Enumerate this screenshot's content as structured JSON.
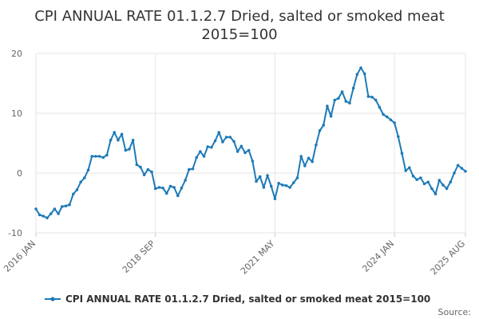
{
  "chart_data": {
    "type": "line",
    "title_lines": [
      "CPI ANNUAL RATE 01.1.2.7 Dried, salted or smoked meat",
      "2015=100"
    ],
    "xlabel": "",
    "ylabel": "",
    "ylim": [
      -10,
      20
    ],
    "yticks": [
      20,
      10,
      0,
      -10
    ],
    "xticks": [
      {
        "label": "2016 JAN",
        "index": 0
      },
      {
        "label": "2018 SEP",
        "index": 32
      },
      {
        "label": "2021 MAY",
        "index": 64
      },
      {
        "label": "2024 JAN",
        "index": 96
      },
      {
        "label": "2025 AUG",
        "index": 115
      }
    ],
    "grid": true,
    "legend_position": "bottom",
    "color": "#1d7ab8",
    "series": [
      {
        "name": "CPI ANNUAL RATE 01.1.2.7 Dried, salted or smoked meat 2015=100",
        "values": [
          -6.0,
          -7.0,
          -7.2,
          -7.5,
          -6.8,
          -6.0,
          -6.8,
          -5.6,
          -5.5,
          -5.3,
          -3.5,
          -2.8,
          -1.5,
          -0.8,
          0.5,
          2.8,
          2.8,
          2.8,
          2.6,
          3.0,
          5.5,
          6.8,
          5.5,
          6.5,
          3.8,
          4.0,
          5.5,
          1.4,
          1.0,
          -0.3,
          0.6,
          0.2,
          -2.6,
          -2.4,
          -2.5,
          -3.4,
          -2.2,
          -2.4,
          -3.8,
          -2.5,
          -1.2,
          0.6,
          0.7,
          2.6,
          3.6,
          2.8,
          4.4,
          4.3,
          5.4,
          6.8,
          5.2,
          6.0,
          6.0,
          5.3,
          3.6,
          4.5,
          3.4,
          3.8,
          2.0,
          -1.4,
          -0.6,
          -2.4,
          -0.4,
          -2.2,
          -4.3,
          -1.7,
          -2.0,
          -2.1,
          -2.4,
          -1.6,
          -0.8,
          2.8,
          1.2,
          2.5,
          1.9,
          4.7,
          7.1,
          8.0,
          11.2,
          9.5,
          12.2,
          12.5,
          13.6,
          12.0,
          11.7,
          14.2,
          16.5,
          17.6,
          16.6,
          12.8,
          12.7,
          12.2,
          11.0,
          9.8,
          9.4,
          8.9,
          8.4,
          6.1,
          3.3,
          0.4,
          0.9,
          -0.5,
          -1.1,
          -0.8,
          -1.8,
          -1.5,
          -2.6,
          -3.5,
          -1.2,
          -2.0,
          -2.6,
          -1.5,
          0.0,
          1.3,
          0.8,
          0.3
        ]
      }
    ],
    "source_label": "Source:"
  }
}
